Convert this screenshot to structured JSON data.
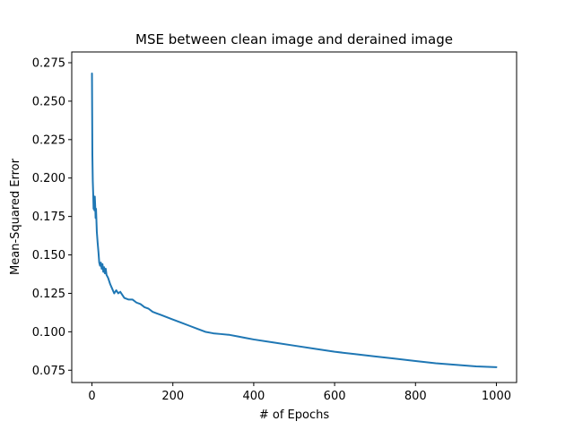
{
  "chart_data": {
    "type": "line",
    "title": "MSE between clean image and derained image",
    "xlabel": "# of Epochs",
    "ylabel": "Mean-Squared Error",
    "xlim": [
      -50,
      1050
    ],
    "ylim": [
      0.067,
      0.282
    ],
    "xticks": [
      0,
      200,
      400,
      600,
      800,
      1000
    ],
    "xtick_labels": [
      "0",
      "200",
      "400",
      "600",
      "800",
      "1000"
    ],
    "yticks": [
      0.075,
      0.1,
      0.125,
      0.15,
      0.175,
      0.2,
      0.225,
      0.25,
      0.275
    ],
    "ytick_labels": [
      "0.075",
      "0.100",
      "0.125",
      "0.150",
      "0.175",
      "0.200",
      "0.225",
      "0.250",
      "0.275"
    ],
    "grid": false,
    "color": "#1f77b4",
    "series": [
      {
        "x": [
          0,
          1,
          2,
          3,
          4,
          5,
          6,
          7,
          8,
          9,
          10,
          12,
          14,
          16,
          18,
          20,
          22,
          24,
          26,
          28,
          30,
          32,
          34,
          36,
          38,
          40,
          45,
          50,
          55,
          60,
          65,
          70,
          75,
          80,
          90,
          100,
          110,
          120,
          130,
          140,
          150,
          160,
          170,
          180,
          190,
          200,
          220,
          240,
          260,
          280,
          300,
          320,
          340,
          360,
          380,
          400,
          450,
          500,
          550,
          600,
          650,
          700,
          750,
          800,
          850,
          900,
          950,
          1000
        ],
        "y": [
          0.268,
          0.215,
          0.198,
          0.19,
          0.18,
          0.185,
          0.179,
          0.188,
          0.182,
          0.174,
          0.18,
          0.165,
          0.158,
          0.152,
          0.145,
          0.143,
          0.145,
          0.141,
          0.144,
          0.139,
          0.142,
          0.138,
          0.141,
          0.137,
          0.136,
          0.135,
          0.131,
          0.128,
          0.125,
          0.127,
          0.125,
          0.126,
          0.124,
          0.122,
          0.121,
          0.121,
          0.119,
          0.118,
          0.116,
          0.115,
          0.113,
          0.112,
          0.111,
          0.11,
          0.109,
          0.108,
          0.106,
          0.104,
          0.102,
          0.1,
          0.099,
          0.0985,
          0.098,
          0.097,
          0.096,
          0.095,
          0.093,
          0.091,
          0.089,
          0.087,
          0.0855,
          0.084,
          0.0825,
          0.081,
          0.0795,
          0.0785,
          0.0775,
          0.077
        ]
      }
    ]
  }
}
